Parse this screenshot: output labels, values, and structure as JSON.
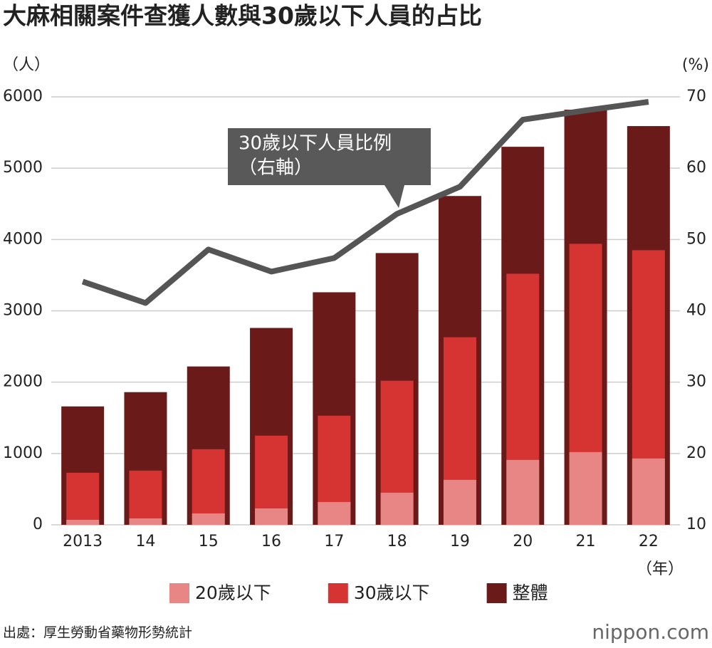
{
  "chart_data": {
    "type": "bar",
    "title": "大麻相關案件查獲人數與30歲以下人員的占比",
    "y_unit": "（人）",
    "y2_unit": "(%)",
    "x_unit": "（年）",
    "categories": [
      "2013",
      "14",
      "15",
      "16",
      "17",
      "18",
      "19",
      "20",
      "21",
      "22"
    ],
    "series": [
      {
        "name": "20歲以下",
        "color": "#e88585",
        "values": [
          70,
          90,
          160,
          230,
          320,
          450,
          630,
          910,
          1020,
          930
        ]
      },
      {
        "name": "30歲以下",
        "color": "#d63333",
        "values": [
          730,
          760,
          1060,
          1250,
          1530,
          2020,
          2630,
          3520,
          3940,
          3850
        ]
      },
      {
        "name": "整體",
        "color": "#6b1a1a",
        "values": [
          1660,
          1860,
          2220,
          2760,
          3260,
          3810,
          4610,
          5300,
          5820,
          5590
        ]
      },
      {
        "name": "30歲以下人員比例",
        "type": "line",
        "axis": "y2",
        "color": "#555555",
        "values": [
          44.1,
          41.1,
          48.6,
          45.5,
          47.4,
          53.6,
          57.4,
          66.8,
          68.1,
          69.3
        ]
      }
    ],
    "annotation": [
      "30歲以下人員比例",
      "（右軸）"
    ],
    "ylim": [
      0,
      6000
    ],
    "yticks": [
      0,
      1000,
      2000,
      3000,
      4000,
      5000,
      6000
    ],
    "y2lim": [
      10,
      70
    ],
    "y2ticks": [
      10,
      20,
      30,
      40,
      50,
      60,
      70
    ],
    "grid": true,
    "source": "出處：厚生勞動省藥物形勢統計",
    "logo": "nippon.com"
  }
}
